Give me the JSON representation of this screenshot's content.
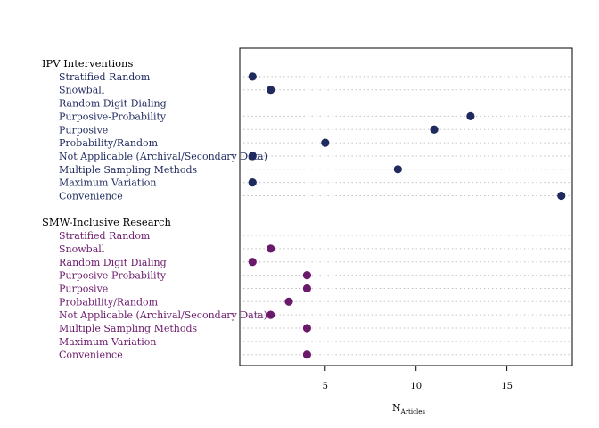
{
  "chart_data": {
    "type": "dot",
    "xlabel": "N",
    "xlabel_sub": "Articles",
    "xlim": [
      0.3,
      18.6
    ],
    "xticks": [
      5,
      10,
      15
    ],
    "grid": "dotted horizontal",
    "groups": [
      {
        "name": "IPV Interventions",
        "color": "#1f2a5e",
        "rows": [
          {
            "label": "Stratified Random",
            "value": 1
          },
          {
            "label": "Snowball",
            "value": 2
          },
          {
            "label": "Random Digit Dialing",
            "value": null
          },
          {
            "label": "Purposive-Probability",
            "value": 13
          },
          {
            "label": "Purposive",
            "value": 11
          },
          {
            "label": "Probability/Random",
            "value": 5
          },
          {
            "label": "Not Applicable (Archival/Secondary Data)",
            "value": 1
          },
          {
            "label": "Multiple Sampling Methods",
            "value": 9
          },
          {
            "label": "Maximum Variation",
            "value": 1
          },
          {
            "label": "Convenience",
            "value": 18
          }
        ]
      },
      {
        "name": "SMW-Inclusive Research",
        "color": "#6b1a6b",
        "rows": [
          {
            "label": "Stratified Random",
            "value": null
          },
          {
            "label": "Snowball",
            "value": 2
          },
          {
            "label": "Random Digit Dialing",
            "value": 1
          },
          {
            "label": "Purposive-Probability",
            "value": 4
          },
          {
            "label": "Purposive",
            "value": 4
          },
          {
            "label": "Probability/Random",
            "value": 3
          },
          {
            "label": "Not Applicable (Archival/Secondary Data)",
            "value": 2
          },
          {
            "label": "Multiple Sampling Methods",
            "value": 4
          },
          {
            "label": "Maximum Variation",
            "value": null
          },
          {
            "label": "Convenience",
            "value": 4
          }
        ]
      }
    ]
  }
}
